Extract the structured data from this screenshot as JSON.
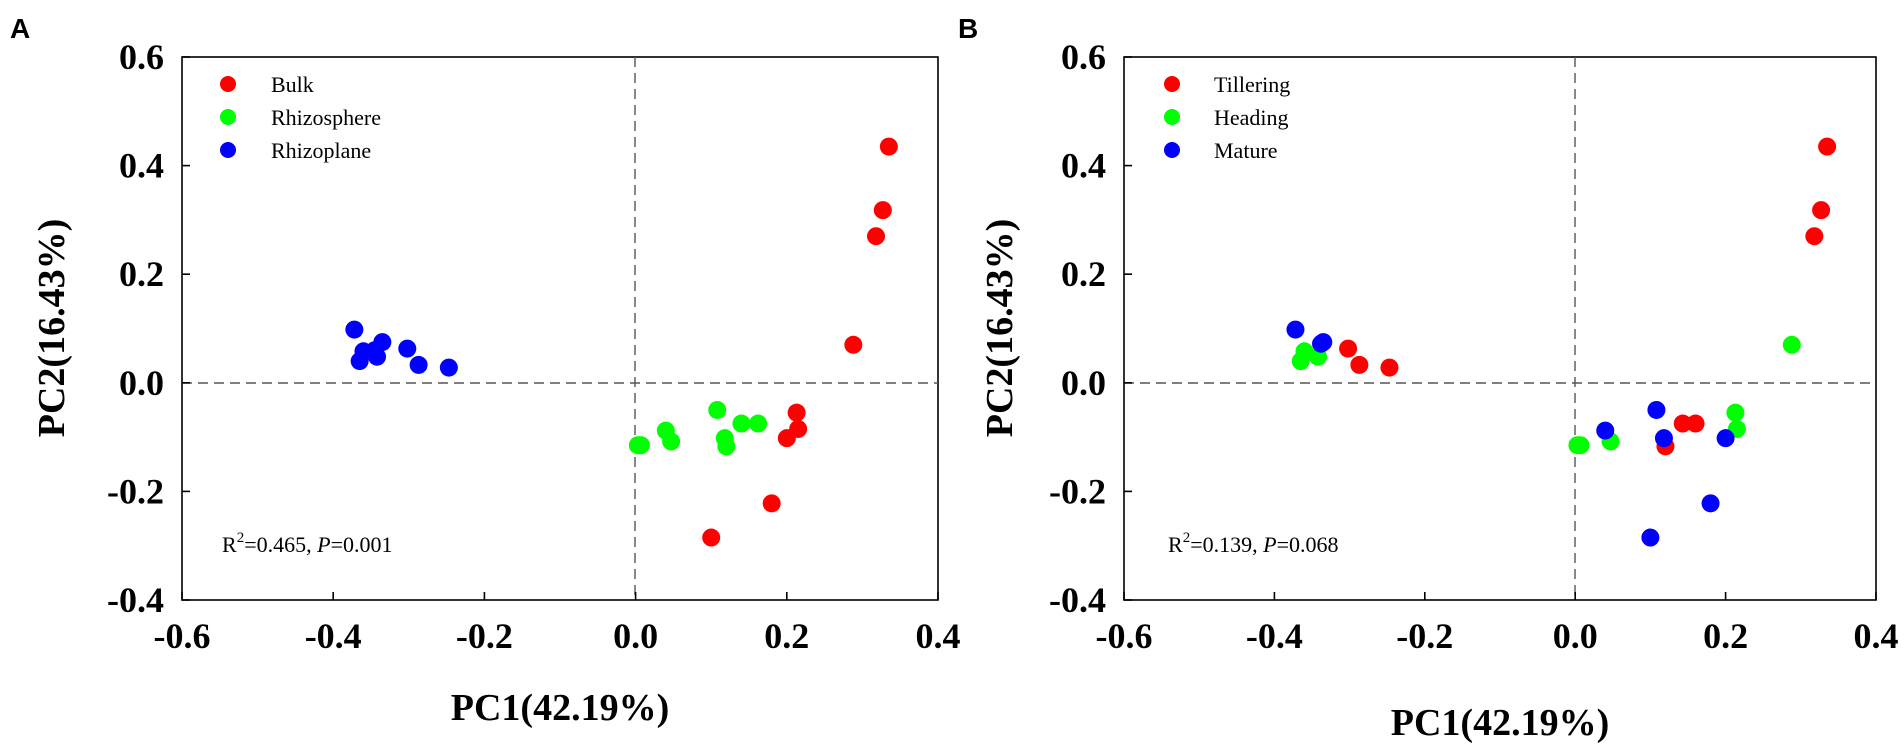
{
  "figure": {
    "panels": [
      "A",
      "B"
    ]
  },
  "colors": {
    "red": "#ff0000",
    "green": "#00ff00",
    "blue": "#0000ff"
  },
  "chart_data": [
    {
      "type": "scatter",
      "panel": "A",
      "title": "",
      "xlabel": "PC1(42.19%)",
      "ylabel": "PC2(16.43%)",
      "xlim": [
        -0.6,
        0.4
      ],
      "ylim": [
        -0.4,
        0.6
      ],
      "xticks": [
        "-0.6",
        "-0.4",
        "-0.2",
        "0.0",
        "0.2",
        "0.4"
      ],
      "yticks": [
        "-0.4",
        "-0.2",
        "0.0",
        "0.2",
        "0.4",
        "0.6"
      ],
      "reference_lines": {
        "x": 0,
        "y": 0
      },
      "legend_position": "top-left",
      "stat": {
        "r2": "0.465",
        "p": "0.001"
      },
      "series": [
        {
          "name": "Bulk",
          "color": "#ff0000",
          "points": [
            [
              0.335,
              0.435
            ],
            [
              0.327,
              0.318
            ],
            [
              0.318,
              0.27
            ],
            [
              0.288,
              0.07
            ],
            [
              0.213,
              -0.055
            ],
            [
              0.215,
              -0.085
            ],
            [
              0.2,
              -0.102
            ],
            [
              0.18,
              -0.222
            ],
            [
              0.1,
              -0.285
            ]
          ]
        },
        {
          "name": "Rhizosphere",
          "color": "#00ff00",
          "points": [
            [
              0.108,
              -0.05
            ],
            [
              0.14,
              -0.075
            ],
            [
              0.162,
              -0.075
            ],
            [
              0.118,
              -0.102
            ],
            [
              0.12,
              -0.117
            ],
            [
              0.04,
              -0.088
            ],
            [
              0.047,
              -0.108
            ],
            [
              0.003,
              -0.115
            ],
            [
              0.007,
              -0.115
            ]
          ]
        },
        {
          "name": "Rhizoplane",
          "color": "#0000ff",
          "points": [
            [
              -0.372,
              0.098
            ],
            [
              -0.335,
              0.075
            ],
            [
              -0.302,
              0.063
            ],
            [
              -0.36,
              0.058
            ],
            [
              -0.342,
              0.048
            ],
            [
              -0.365,
              0.04
            ],
            [
              -0.287,
              0.033
            ],
            [
              -0.247,
              0.028
            ],
            [
              -0.345,
              0.06
            ]
          ]
        }
      ]
    },
    {
      "type": "scatter",
      "panel": "B",
      "title": "",
      "xlabel": "PC1(42.19%)",
      "ylabel": "PC2(16.43%)",
      "xlim": [
        -0.6,
        0.4
      ],
      "ylim": [
        -0.4,
        0.6
      ],
      "xticks": [
        "-0.6",
        "-0.4",
        "-0.2",
        "0.0",
        "0.2",
        "0.4"
      ],
      "yticks": [
        "-0.4",
        "-0.2",
        "0.0",
        "0.2",
        "0.4",
        "0.6"
      ],
      "reference_lines": {
        "x": 0,
        "y": 0
      },
      "legend_position": "top-left",
      "stat": {
        "r2": "0.139",
        "p": "0.068"
      },
      "series": [
        {
          "name": "Tillering",
          "color": "#ff0000",
          "points": [
            [
              0.335,
              0.435
            ],
            [
              0.327,
              0.318
            ],
            [
              0.318,
              0.27
            ],
            [
              -0.302,
              0.063
            ],
            [
              -0.287,
              0.033
            ],
            [
              -0.247,
              0.028
            ],
            [
              0.143,
              -0.075
            ],
            [
              0.16,
              -0.075
            ],
            [
              0.12,
              -0.117
            ]
          ]
        },
        {
          "name": "Heading",
          "color": "#00ff00",
          "points": [
            [
              0.288,
              0.07
            ],
            [
              0.213,
              -0.055
            ],
            [
              0.215,
              -0.085
            ],
            [
              0.003,
              -0.115
            ],
            [
              0.047,
              -0.108
            ],
            [
              -0.36,
              0.058
            ],
            [
              -0.342,
              0.048
            ],
            [
              -0.365,
              0.04
            ],
            [
              0.007,
              -0.115
            ]
          ]
        },
        {
          "name": "Mature",
          "color": "#0000ff",
          "points": [
            [
              -0.372,
              0.098
            ],
            [
              -0.335,
              0.075
            ],
            [
              0.108,
              -0.05
            ],
            [
              0.04,
              -0.088
            ],
            [
              0.118,
              -0.102
            ],
            [
              0.2,
              -0.102
            ],
            [
              0.18,
              -0.222
            ],
            [
              0.1,
              -0.285
            ],
            [
              -0.338,
              0.072
            ]
          ]
        }
      ]
    }
  ]
}
